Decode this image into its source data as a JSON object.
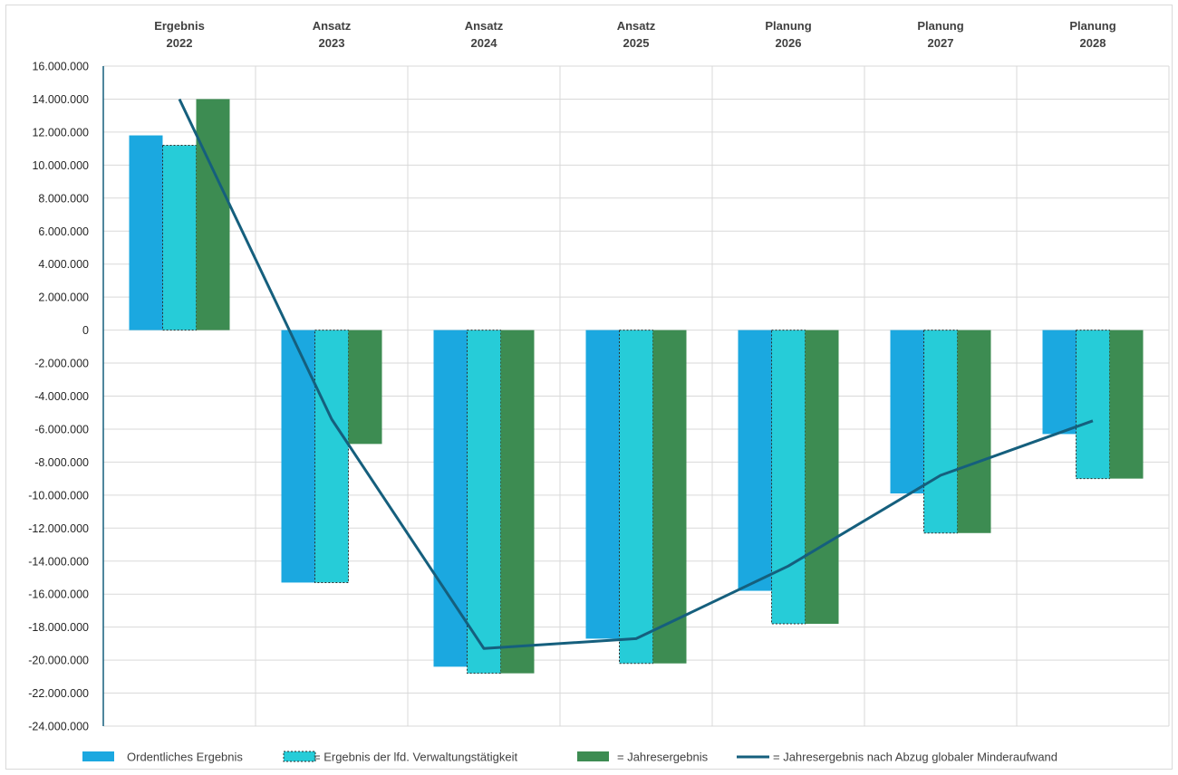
{
  "chart_data": {
    "type": "bar",
    "categories": [
      [
        "Ergebnis",
        "2022"
      ],
      [
        "Ansatz",
        "2023"
      ],
      [
        "Ansatz",
        "2024"
      ],
      [
        "Ansatz",
        "2025"
      ],
      [
        "Planung",
        "2026"
      ],
      [
        "Planung",
        "2027"
      ],
      [
        "Planung",
        "2028"
      ]
    ],
    "ylim": [
      -24000000,
      16000000
    ],
    "ytick_step": 2000000,
    "yticks": [
      "16.000.000",
      "14.000.000",
      "12.000.000",
      "10.000.000",
      "8.000.000",
      "6.000.000",
      "4.000.000",
      "2.000.000",
      "0",
      "-2.000.000",
      "-4.000.000",
      "-6.000.000",
      "-8.000.000",
      "-10.000.000",
      "-12.000.000",
      "-14.000.000",
      "-16.000.000",
      "-18.000.000",
      "-20.000.000",
      "-22.000.000",
      "-24.000.000"
    ],
    "category_labels_position": "top",
    "grid": true,
    "legend_position": "bottom",
    "series": [
      {
        "name": "Ordentliches Ergebnis",
        "type": "bar",
        "color": "#1ba8e0",
        "dashed_border": false,
        "values": [
          11800000,
          -15300000,
          -20400000,
          -18700000,
          -15800000,
          -9900000,
          -6300000
        ]
      },
      {
        "name": "= Ergebnis der lfd. Verwaltungstätigkeit",
        "type": "bar",
        "color": "#26ccd8",
        "dashed_border": true,
        "values": [
          11200000,
          -15300000,
          -20800000,
          -20200000,
          -17800000,
          -12300000,
          -9000000
        ]
      },
      {
        "name": "= Jahresergebnis",
        "type": "bar",
        "color": "#3d8c52",
        "dashed_border": false,
        "values": [
          14000000,
          -6900000,
          -20800000,
          -20200000,
          -17800000,
          -12300000,
          -9000000
        ]
      },
      {
        "name": "= Jahresergebnis nach Abzug globaler Minderaufwand",
        "type": "line",
        "color": "#155f7d",
        "values": [
          14000000,
          -5400000,
          -19300000,
          -18700000,
          -14300000,
          -8800000,
          -5500000
        ]
      }
    ]
  }
}
